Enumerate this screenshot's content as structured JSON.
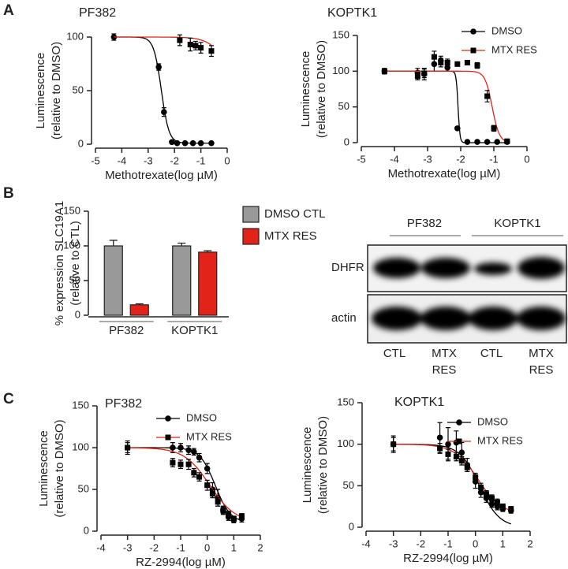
{
  "panel_labels": [
    "A",
    "B",
    "C"
  ],
  "chart_data": [
    {
      "type": "dose",
      "title": "PF382",
      "xlabel": "Methotrexate(log µM)",
      "ylabel": [
        "Luminescence",
        "(relative to DMSO)"
      ],
      "xlim": [
        -5,
        0
      ],
      "xticks": [
        -5,
        -4,
        -3,
        -2,
        -1,
        0
      ],
      "ylim": [
        0,
        100
      ],
      "yticks": [
        0,
        50,
        100
      ],
      "marker_color": "#000000",
      "series": [
        {
          "color": "#000000",
          "marker": "circle",
          "x": [
            -4.3,
            -2.6,
            -2.4,
            -2.1,
            -1.9,
            -1.6,
            -1.3,
            -1.0,
            -0.6
          ],
          "values": [
            100,
            72,
            30,
            2,
            1,
            1,
            1,
            1,
            1
          ],
          "errors": [
            3,
            3,
            4,
            1,
            1,
            1,
            1,
            1,
            1
          ],
          "fit": {
            "top": 100,
            "bottom": 1,
            "log_ic50": -2.5,
            "hill": -3
          }
        },
        {
          "color": "#e2231a",
          "marker": "square",
          "x": [
            -1.8,
            -1.4,
            -1.2,
            -1.0,
            -0.6
          ],
          "values": [
            97,
            93,
            92,
            90,
            87
          ],
          "errors": [
            5,
            6,
            4,
            5,
            5
          ],
          "fit": {
            "top": 100,
            "bottom": 0,
            "log_ic50": 0.3,
            "hill": -1.2
          }
        }
      ]
    },
    {
      "type": "dose",
      "title": "KOPTK1",
      "xlabel": "Methotrexate(log µM)",
      "ylabel": [
        "Luminescence",
        "(relative to DMSO)"
      ],
      "xlim": [
        -5,
        0
      ],
      "xticks": [
        -5,
        -4,
        -3,
        -2,
        -1,
        0
      ],
      "ylim": [
        0,
        150
      ],
      "yticks": [
        0,
        50,
        100,
        150
      ],
      "marker_color": "#000000",
      "legend": true,
      "series": [
        {
          "name": "DMSO",
          "color": "#000000",
          "marker": "circle",
          "x": [
            -4.3,
            -3.3,
            -3.1,
            -2.8,
            -2.6,
            -2.4,
            -2.1,
            -1.8,
            -1.5,
            -1.2,
            -0.9,
            -0.6
          ],
          "values": [
            100,
            98,
            96,
            110,
            115,
            105,
            20,
            1,
            1,
            1,
            1,
            1
          ],
          "errors": [
            4,
            6,
            8,
            10,
            6,
            5,
            2,
            1,
            1,
            1,
            1,
            1
          ],
          "fit": {
            "top": 100,
            "bottom": 0,
            "log_ic50": -2.08,
            "hill": -15
          }
        },
        {
          "name": "MTX RES",
          "color": "#e2231a",
          "marker": "square",
          "x": [
            -4.3,
            -3.3,
            -3.1,
            -2.8,
            -2.6,
            -2.4,
            -2.1,
            -1.8,
            -1.5,
            -1.2,
            -1.0,
            -0.6
          ],
          "values": [
            100,
            93,
            97,
            120,
            112,
            112,
            110,
            112,
            108,
            65,
            20,
            2
          ],
          "errors": [
            3,
            5,
            6,
            8,
            6,
            5,
            3,
            2,
            4,
            8,
            4,
            1
          ],
          "fit": {
            "top": 100,
            "bottom": 0,
            "log_ic50": -1.05,
            "hill": -4
          }
        }
      ]
    },
    {
      "type": "bar",
      "ylabel": [
        "% expression SLC19A1",
        "(relative to CTL)"
      ],
      "categories": [
        "PF382",
        "KOPTK1"
      ],
      "ylim": [
        0,
        150
      ],
      "yticks": [
        0,
        50,
        100,
        150
      ],
      "series": [
        {
          "name": "DMSO CTL",
          "color": "#999999",
          "values": [
            100,
            100
          ],
          "errors": [
            8,
            4
          ]
        },
        {
          "name": "MTX RES",
          "color": "#e2231a",
          "values": [
            15,
            91
          ],
          "errors": [
            1.5,
            2
          ]
        }
      ]
    },
    {
      "type": "dose",
      "title": "PF382",
      "xlabel": "RZ-2994(log µM)",
      "ylabel": [
        "Luminescence",
        "(relative to DMSO)"
      ],
      "xlim": [
        -4,
        2
      ],
      "xticks": [
        -4,
        -3,
        -2,
        -1,
        0,
        1,
        2
      ],
      "ylim": [
        0,
        150
      ],
      "yticks": [
        0,
        50,
        100,
        150
      ],
      "marker_color": "#000000",
      "legend": true,
      "series": [
        {
          "name": "DMSO",
          "color": "#000000",
          "marker": "circle",
          "x": [
            -3,
            -1.3,
            -1.0,
            -0.7,
            -0.5,
            -0.3,
            0,
            0.2,
            0.4,
            0.6,
            0.8,
            1.0,
            1.3
          ],
          "values": [
            100,
            100,
            100,
            97,
            95,
            88,
            75,
            50,
            40,
            25,
            17,
            13,
            15
          ],
          "errors": [
            8,
            6,
            5,
            5,
            4,
            5,
            6,
            8,
            10,
            5,
            4,
            3,
            4
          ],
          "fit": {
            "top": 100,
            "bottom": 10,
            "log_ic50": 0.3,
            "hill": -1.5
          }
        },
        {
          "name": "MTX RES",
          "color": "#e2231a",
          "marker": "square",
          "x": [
            -3,
            -1.3,
            -1.0,
            -0.7,
            -0.5,
            -0.3,
            0,
            0.2,
            0.4,
            0.6,
            0.8,
            1.0,
            1.3
          ],
          "values": [
            100,
            82,
            80,
            80,
            70,
            65,
            55,
            45,
            35,
            25,
            20,
            15,
            18
          ],
          "errors": [
            6,
            5,
            5,
            6,
            5,
            5,
            6,
            5,
            5,
            4,
            4,
            3,
            3
          ],
          "fit": {
            "top": 100,
            "bottom": 10,
            "log_ic50": 0.1,
            "hill": -0.9
          }
        }
      ]
    },
    {
      "type": "dose",
      "title": "KOPTK1",
      "xlabel": "RZ-2994(log µM)",
      "ylabel": [
        "Luminescence",
        "(relative to DMSO)"
      ],
      "xlim": [
        -4,
        2
      ],
      "xticks": [
        -4,
        -3,
        -2,
        -1,
        0,
        1,
        2
      ],
      "ylim": [
        0,
        150
      ],
      "yticks": [
        0,
        50,
        100,
        150
      ],
      "marker_color": "#000000",
      "legend": true,
      "series": [
        {
          "name": "DMSO",
          "color": "#000000",
          "marker": "circle",
          "x": [
            -3,
            -1.3,
            -1.0,
            -0.7,
            -0.5,
            -0.3,
            0,
            0.2,
            0.4,
            0.6,
            0.8,
            1.0,
            1.3
          ],
          "values": [
            100,
            108,
            100,
            102,
            90,
            75,
            55,
            42,
            35,
            28,
            25,
            22,
            20
          ],
          "errors": [
            10,
            18,
            20,
            14,
            12,
            8,
            8,
            6,
            5,
            4,
            4,
            3,
            3
          ],
          "fit": {
            "top": 100,
            "bottom": 0,
            "log_ic50": 0.15,
            "hill": -1.2
          }
        },
        {
          "name": "MTX RES",
          "color": "#e2231a",
          "marker": "square",
          "x": [
            -3,
            -1.3,
            -1.0,
            -0.7,
            -0.5,
            -0.3,
            0,
            0.2,
            0.4,
            0.6,
            0.8,
            1.0,
            1.3
          ],
          "values": [
            100,
            95,
            88,
            85,
            80,
            72,
            60,
            48,
            40,
            35,
            30,
            25,
            22
          ],
          "errors": [
            8,
            6,
            6,
            5,
            5,
            5,
            5,
            5,
            4,
            4,
            4,
            3,
            3
          ],
          "fit": {
            "top": 100,
            "bottom": 15,
            "log_ic50": 0.1,
            "hill": -1.0
          }
        }
      ]
    }
  ],
  "blot": {
    "groups": [
      "PF382",
      "KOPTK1"
    ],
    "rows": [
      "DHFR",
      "actin"
    ],
    "lanes": [
      "CTL",
      "MTX RES",
      "CTL",
      "MTX RES"
    ]
  }
}
